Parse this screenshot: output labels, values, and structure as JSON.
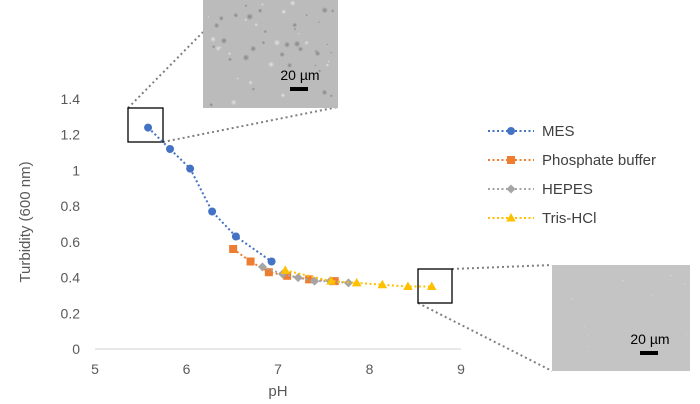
{
  "chart_data": {
    "type": "scatter",
    "xlabel": "pH",
    "ylabel": "Turbidity (600 nm)",
    "xlim": [
      5,
      9
    ],
    "ylim": [
      0,
      1.4
    ],
    "x_ticks": [
      "5",
      "6",
      "7",
      "8",
      "9"
    ],
    "y_ticks": [
      "0",
      "0.2",
      "0.4",
      "0.6",
      "0.8",
      "1",
      "1.2",
      "1.4"
    ],
    "grid": false,
    "legend": "right",
    "series": [
      {
        "name": "MES",
        "color": "#4472C4",
        "marker": "circle",
        "points": [
          [
            5.58,
            1.24
          ],
          [
            5.82,
            1.12
          ],
          [
            6.04,
            1.01
          ],
          [
            6.28,
            0.77
          ],
          [
            6.54,
            0.63
          ],
          [
            6.93,
            0.49
          ]
        ]
      },
      {
        "name": "Phosphate buffer",
        "color": "#ED7D31",
        "marker": "square",
        "points": [
          [
            6.51,
            0.56
          ],
          [
            6.7,
            0.49
          ],
          [
            6.9,
            0.43
          ],
          [
            7.1,
            0.41
          ],
          [
            7.34,
            0.39
          ],
          [
            7.62,
            0.38
          ]
        ]
      },
      {
        "name": "HEPES",
        "color": "#A5A5A5",
        "marker": "diamond",
        "points": [
          [
            6.83,
            0.46
          ],
          [
            7.05,
            0.42
          ],
          [
            7.22,
            0.4
          ],
          [
            7.4,
            0.38
          ],
          [
            7.57,
            0.38
          ],
          [
            7.77,
            0.37
          ]
        ]
      },
      {
        "name": "Tris-HCl",
        "color": "#FFC000",
        "marker": "triangle",
        "points": [
          [
            7.08,
            0.44
          ],
          [
            7.58,
            0.38
          ],
          [
            7.86,
            0.37
          ],
          [
            8.14,
            0.36
          ],
          [
            8.42,
            0.35
          ],
          [
            8.68,
            0.35
          ]
        ]
      }
    ],
    "insets": [
      {
        "name": "low-ph-micrograph",
        "scale_bar": "20 µm"
      },
      {
        "name": "high-ph-micrograph",
        "scale_bar": "20 µm"
      }
    ]
  }
}
